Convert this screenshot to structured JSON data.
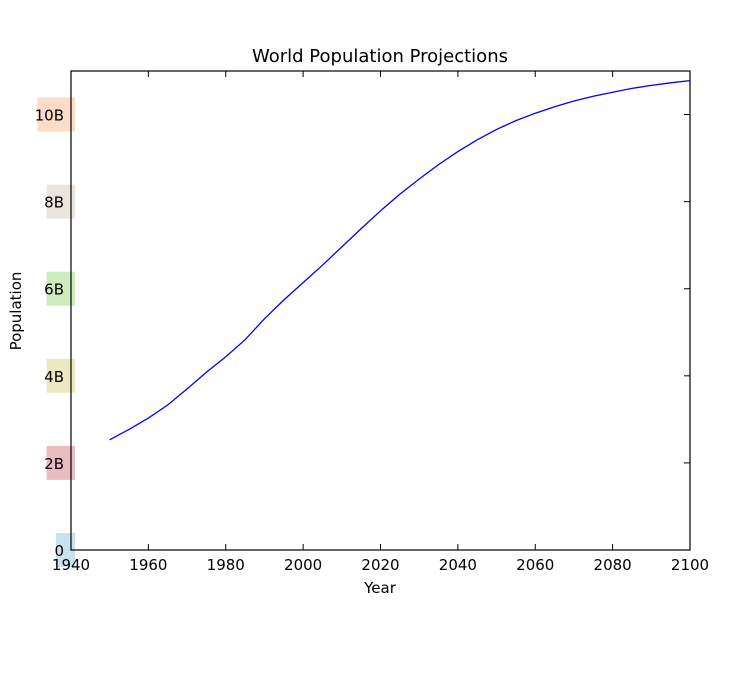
{
  "chart_data": {
    "type": "line",
    "title": "World Population Projections",
    "xlabel": "Year",
    "ylabel": "Population",
    "xlim": [
      1940,
      2100
    ],
    "ylim": [
      0,
      11000000000
    ],
    "x_ticks": [
      1940,
      1960,
      1980,
      2000,
      2020,
      2040,
      2060,
      2080,
      2100
    ],
    "y_ticks": [
      {
        "value": 0,
        "label": "0",
        "bg": "#9ecae1"
      },
      {
        "value": 2000000000,
        "label": "2B",
        "bg": "#d7858a"
      },
      {
        "value": 4000000000,
        "label": "4B",
        "bg": "#dcd78c"
      },
      {
        "value": 6000000000,
        "label": "6B",
        "bg": "#a7dd88"
      },
      {
        "value": 8000000000,
        "label": "8B",
        "bg": "#d9cfc3"
      },
      {
        "value": 10000000000,
        "label": "10B",
        "bg": "#f6c09c"
      }
    ],
    "series": [
      {
        "color": "#0000ff",
        "x": [
          1950,
          1955,
          1960,
          1965,
          1970,
          1975,
          1980,
          1985,
          1990,
          1995,
          2000,
          2005,
          2010,
          2015,
          2020,
          2025,
          2030,
          2035,
          2040,
          2045,
          2050,
          2055,
          2060,
          2065,
          2070,
          2075,
          2080,
          2085,
          2090,
          2095,
          2100
        ],
        "y": [
          2530000000,
          2770000000,
          3030000000,
          3330000000,
          3700000000,
          4080000000,
          4440000000,
          4830000000,
          5310000000,
          5740000000,
          6140000000,
          6540000000,
          6960000000,
          7380000000,
          7790000000,
          8170000000,
          8520000000,
          8850000000,
          9150000000,
          9420000000,
          9660000000,
          9860000000,
          10030000000,
          10180000000,
          10310000000,
          10420000000,
          10510000000,
          10600000000,
          10670000000,
          10730000000,
          10780000000
        ]
      }
    ]
  }
}
